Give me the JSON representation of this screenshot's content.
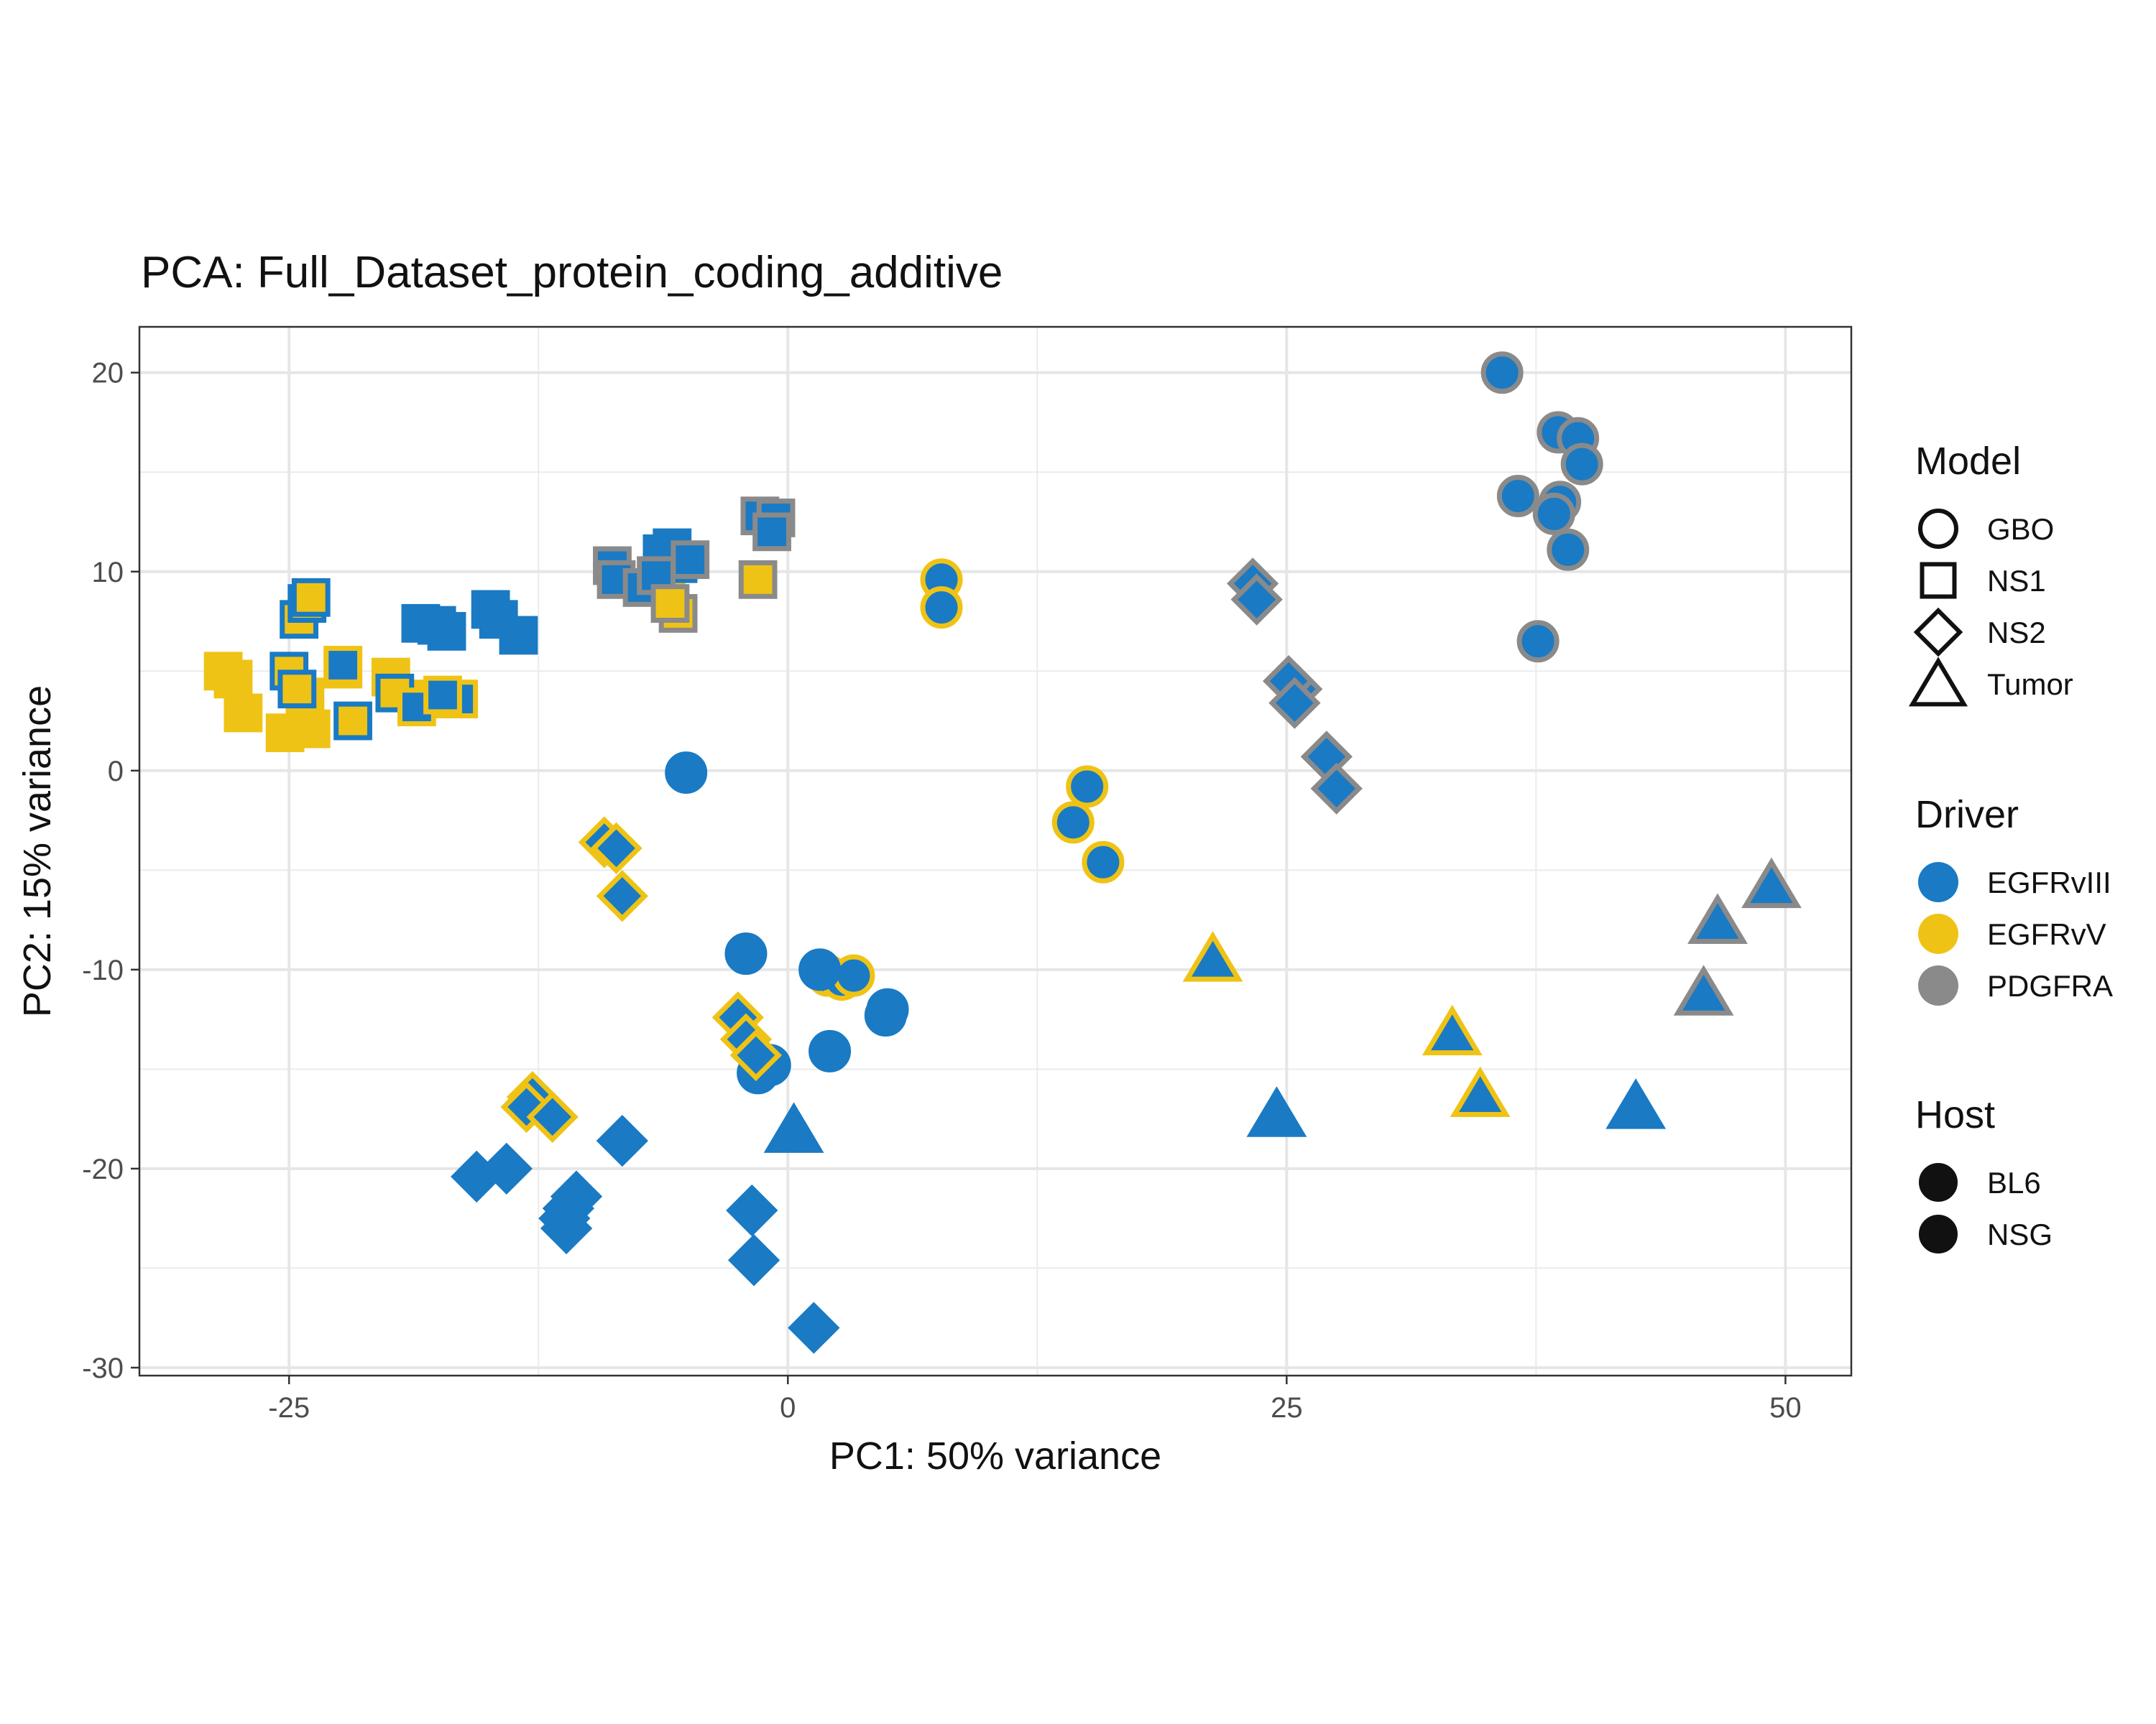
{
  "chart_data": {
    "type": "scatter",
    "title": "PCA: Full_Dataset_protein_coding_additive",
    "xlabel": "PC1: 50% variance",
    "ylabel": "PC2: 15% variance",
    "xlim": [
      -32.5,
      53.3
    ],
    "ylim": [
      -30.4,
      22.3
    ],
    "x_ticks": [
      -25,
      0,
      25,
      50
    ],
    "x_tick_labels": [
      "-25",
      "0",
      "25",
      "50"
    ],
    "y_ticks": [
      -30,
      -20,
      -10,
      0,
      10,
      20
    ],
    "y_tick_labels": [
      "-30",
      "-20",
      "-10",
      "0",
      "10",
      "20"
    ],
    "grid": true,
    "legend_placement": "right",
    "colors": {
      "EGFRvIII": "#1a7ac4",
      "EGFRvV": "#efc315",
      "PDGFRA": "#8a8a8a",
      "legend_black": "#111111"
    },
    "legend": {
      "model_title": "Model",
      "model_items": [
        {
          "label": "GBO",
          "shape": "circle"
        },
        {
          "label": "NS1",
          "shape": "square"
        },
        {
          "label": "NS2",
          "shape": "diamond"
        },
        {
          "label": "Tumor",
          "shape": "triangle"
        }
      ],
      "driver_title": "Driver",
      "driver_items": [
        {
          "label": "EGFRvIII",
          "color": "#1a7ac4"
        },
        {
          "label": "EGFRvV",
          "color": "#efc315"
        },
        {
          "label": "PDGFRA",
          "color": "#8a8a8a"
        }
      ],
      "host_title": "Host",
      "host_items": [
        {
          "label": "BL6"
        },
        {
          "label": "NSG"
        }
      ]
    },
    "points": [
      {
        "x": 35.8,
        "y": 20.0,
        "shape": "circle",
        "fill": "EGFRvIII",
        "stroke": "PDGFRA"
      },
      {
        "x": 38.6,
        "y": 17.0,
        "shape": "circle",
        "fill": "EGFRvIII",
        "stroke": "PDGFRA"
      },
      {
        "x": 39.6,
        "y": 16.7,
        "shape": "circle",
        "fill": "EGFRvIII",
        "stroke": "PDGFRA"
      },
      {
        "x": 39.8,
        "y": 15.4,
        "shape": "circle",
        "fill": "EGFRvIII",
        "stroke": "PDGFRA"
      },
      {
        "x": 36.6,
        "y": 13.8,
        "shape": "circle",
        "fill": "EGFRvIII",
        "stroke": "PDGFRA"
      },
      {
        "x": 38.7,
        "y": 13.5,
        "shape": "circle",
        "fill": "EGFRvIII",
        "stroke": "PDGFRA"
      },
      {
        "x": 38.4,
        "y": 12.9,
        "shape": "circle",
        "fill": "EGFRvIII",
        "stroke": "PDGFRA"
      },
      {
        "x": 39.1,
        "y": 11.1,
        "shape": "circle",
        "fill": "EGFRvIII",
        "stroke": "PDGFRA"
      },
      {
        "x": 37.6,
        "y": 6.5,
        "shape": "circle",
        "fill": "EGFRvIII",
        "stroke": "PDGFRA"
      },
      {
        "x": 23.3,
        "y": 9.4,
        "shape": "diamond",
        "fill": "EGFRvIII",
        "stroke": "PDGFRA"
      },
      {
        "x": 23.5,
        "y": 8.6,
        "shape": "diamond",
        "fill": "EGFRvIII",
        "stroke": "PDGFRA"
      },
      {
        "x": 25.5,
        "y": 4.1,
        "shape": "diamond",
        "fill": "EGFRvIII",
        "stroke": "PDGFRA"
      },
      {
        "x": 25.1,
        "y": 4.5,
        "shape": "diamond",
        "fill": "EGFRvIII",
        "stroke": "PDGFRA"
      },
      {
        "x": 25.4,
        "y": 3.4,
        "shape": "diamond",
        "fill": "EGFRvIII",
        "stroke": "PDGFRA"
      },
      {
        "x": 27.0,
        "y": 0.7,
        "shape": "diamond",
        "fill": "EGFRvIII",
        "stroke": "PDGFRA"
      },
      {
        "x": 27.5,
        "y": -0.9,
        "shape": "diamond",
        "fill": "EGFRvIII",
        "stroke": "PDGFRA"
      },
      {
        "x": 7.7,
        "y": 9.6,
        "shape": "circle",
        "fill": "EGFRvIII",
        "stroke": "EGFRvV"
      },
      {
        "x": 7.7,
        "y": 8.2,
        "shape": "circle",
        "fill": "EGFRvIII",
        "stroke": "EGFRvV"
      },
      {
        "x": 15.0,
        "y": -0.8,
        "shape": "circle",
        "fill": "EGFRvIII",
        "stroke": "EGFRvV"
      },
      {
        "x": 14.3,
        "y": -2.6,
        "shape": "circle",
        "fill": "EGFRvIII",
        "stroke": "EGFRvV"
      },
      {
        "x": 15.8,
        "y": -4.6,
        "shape": "circle",
        "fill": "EGFRvIII",
        "stroke": "EGFRvV"
      },
      {
        "x": 2.0,
        "y": -10.3,
        "shape": "circle",
        "fill": "EGFRvIII",
        "stroke": "EGFRvV"
      },
      {
        "x": 2.7,
        "y": -10.5,
        "shape": "circle",
        "fill": "EGFRvIII",
        "stroke": "EGFRvV"
      },
      {
        "x": 3.3,
        "y": -10.3,
        "shape": "circle",
        "fill": "EGFRvIII",
        "stroke": "EGFRvV"
      },
      {
        "x": -5.1,
        "y": -0.1,
        "shape": "circle",
        "fill": "EGFRvIII",
        "stroke": "EGFRvIII"
      },
      {
        "x": -2.1,
        "y": -9.2,
        "shape": "circle",
        "fill": "EGFRvIII",
        "stroke": "EGFRvIII"
      },
      {
        "x": 1.6,
        "y": -10.0,
        "shape": "circle",
        "fill": "EGFRvIII",
        "stroke": "EGFRvIII"
      },
      {
        "x": 5.0,
        "y": -12.0,
        "shape": "circle",
        "fill": "EGFRvIII",
        "stroke": "EGFRvIII"
      },
      {
        "x": 4.9,
        "y": -12.3,
        "shape": "circle",
        "fill": "EGFRvIII",
        "stroke": "EGFRvIII"
      },
      {
        "x": 2.1,
        "y": -14.1,
        "shape": "circle",
        "fill": "EGFRvIII",
        "stroke": "EGFRvIII"
      },
      {
        "x": -0.9,
        "y": -14.8,
        "shape": "circle",
        "fill": "EGFRvIII",
        "stroke": "EGFRvIII"
      },
      {
        "x": -1.5,
        "y": -15.2,
        "shape": "circle",
        "fill": "EGFRvIII",
        "stroke": "EGFRvIII"
      },
      {
        "x": -9.2,
        "y": -3.6,
        "shape": "diamond",
        "fill": "EGFRvIII",
        "stroke": "EGFRvV"
      },
      {
        "x": -8.6,
        "y": -3.9,
        "shape": "diamond",
        "fill": "EGFRvIII",
        "stroke": "EGFRvV"
      },
      {
        "x": -8.3,
        "y": -6.3,
        "shape": "diamond",
        "fill": "EGFRvIII",
        "stroke": "EGFRvV"
      },
      {
        "x": -2.5,
        "y": -12.4,
        "shape": "diamond",
        "fill": "EGFRvIII",
        "stroke": "EGFRvV"
      },
      {
        "x": -2.1,
        "y": -13.5,
        "shape": "diamond",
        "fill": "EGFRvIII",
        "stroke": "EGFRvV"
      },
      {
        "x": -1.6,
        "y": -14.3,
        "shape": "diamond",
        "fill": "EGFRvIII",
        "stroke": "EGFRvV"
      },
      {
        "x": -12.8,
        "y": -16.4,
        "shape": "diamond",
        "fill": "EGFRvIII",
        "stroke": "EGFRvV"
      },
      {
        "x": -13.1,
        "y": -16.9,
        "shape": "diamond",
        "fill": "EGFRvIII",
        "stroke": "EGFRvV"
      },
      {
        "x": -11.8,
        "y": -17.4,
        "shape": "diamond",
        "fill": "EGFRvIII",
        "stroke": "EGFRvV"
      },
      {
        "x": -8.3,
        "y": -18.6,
        "shape": "diamond",
        "fill": "EGFRvIII",
        "stroke": "EGFRvIII"
      },
      {
        "x": -15.6,
        "y": -20.4,
        "shape": "diamond",
        "fill": "EGFRvIII",
        "stroke": "EGFRvIII"
      },
      {
        "x": -14.1,
        "y": -20.0,
        "shape": "diamond",
        "fill": "EGFRvIII",
        "stroke": "EGFRvIII"
      },
      {
        "x": -10.6,
        "y": -21.4,
        "shape": "diamond",
        "fill": "EGFRvIII",
        "stroke": "EGFRvIII"
      },
      {
        "x": -11.0,
        "y": -22.0,
        "shape": "diamond",
        "fill": "EGFRvIII",
        "stroke": "EGFRvIII"
      },
      {
        "x": -11.2,
        "y": -22.5,
        "shape": "diamond",
        "fill": "EGFRvIII",
        "stroke": "EGFRvIII"
      },
      {
        "x": -11.1,
        "y": -23.0,
        "shape": "diamond",
        "fill": "EGFRvIII",
        "stroke": "EGFRvIII"
      },
      {
        "x": -1.8,
        "y": -22.1,
        "shape": "diamond",
        "fill": "EGFRvIII",
        "stroke": "EGFRvIII"
      },
      {
        "x": -1.7,
        "y": -24.6,
        "shape": "diamond",
        "fill": "EGFRvIII",
        "stroke": "EGFRvIII"
      },
      {
        "x": 1.3,
        "y": -28.0,
        "shape": "diamond",
        "fill": "EGFRvIII",
        "stroke": "EGFRvIII"
      },
      {
        "x": 0.3,
        "y": -18.2,
        "shape": "triangle",
        "fill": "EGFRvIII",
        "stroke": "EGFRvIII"
      },
      {
        "x": 24.5,
        "y": -17.4,
        "shape": "triangle",
        "fill": "EGFRvIII",
        "stroke": "EGFRvIII"
      },
      {
        "x": 42.5,
        "y": -17.0,
        "shape": "triangle",
        "fill": "EGFRvIII",
        "stroke": "EGFRvIII"
      },
      {
        "x": 21.3,
        "y": -9.6,
        "shape": "triangle",
        "fill": "EGFRvIII",
        "stroke": "EGFRvV"
      },
      {
        "x": 33.3,
        "y": -13.3,
        "shape": "triangle",
        "fill": "EGFRvIII",
        "stroke": "EGFRvV"
      },
      {
        "x": 34.7,
        "y": -16.4,
        "shape": "triangle",
        "fill": "EGFRvIII",
        "stroke": "EGFRvV"
      },
      {
        "x": 49.3,
        "y": -5.9,
        "shape": "triangle",
        "fill": "EGFRvIII",
        "stroke": "PDGFRA"
      },
      {
        "x": 46.6,
        "y": -7.7,
        "shape": "triangle",
        "fill": "EGFRvIII",
        "stroke": "PDGFRA"
      },
      {
        "x": 45.9,
        "y": -11.3,
        "shape": "triangle",
        "fill": "EGFRvIII",
        "stroke": "PDGFRA"
      },
      {
        "x": -28.3,
        "y": 5.0,
        "shape": "square",
        "fill": "EGFRvV",
        "stroke": "EGFRvV"
      },
      {
        "x": -27.8,
        "y": 4.6,
        "shape": "square",
        "fill": "EGFRvV",
        "stroke": "EGFRvV"
      },
      {
        "x": -27.3,
        "y": 2.9,
        "shape": "square",
        "fill": "EGFRvV",
        "stroke": "EGFRvV"
      },
      {
        "x": -25.2,
        "y": 1.9,
        "shape": "square",
        "fill": "EGFRvV",
        "stroke": "EGFRvV"
      },
      {
        "x": -23.9,
        "y": 2.1,
        "shape": "square",
        "fill": "EGFRvV",
        "stroke": "EGFRvV"
      },
      {
        "x": -24.2,
        "y": 3.7,
        "shape": "square",
        "fill": "EGFRvV",
        "stroke": "EGFRvV"
      },
      {
        "x": -22.3,
        "y": 5.1,
        "shape": "square",
        "fill": "EGFRvV",
        "stroke": "EGFRvV"
      },
      {
        "x": -19.9,
        "y": 4.7,
        "shape": "square",
        "fill": "EGFRvV",
        "stroke": "EGFRvV"
      },
      {
        "x": -17.8,
        "y": 3.6,
        "shape": "square",
        "fill": "EGFRvV",
        "stroke": "EGFRvV"
      },
      {
        "x": -6.1,
        "y": 9.3,
        "shape": "square",
        "fill": "EGFRvV",
        "stroke": "EGFRvV"
      },
      {
        "x": -24.5,
        "y": 7.6,
        "shape": "square",
        "fill": "EGFRvV",
        "stroke": "EGFRvIII"
      },
      {
        "x": -24.1,
        "y": 8.4,
        "shape": "square",
        "fill": "EGFRvV",
        "stroke": "EGFRvIII"
      },
      {
        "x": -23.9,
        "y": 8.7,
        "shape": "square",
        "fill": "EGFRvV",
        "stroke": "EGFRvIII"
      },
      {
        "x": -25.0,
        "y": 5.0,
        "shape": "square",
        "fill": "EGFRvV",
        "stroke": "EGFRvIII"
      },
      {
        "x": -24.6,
        "y": 4.1,
        "shape": "square",
        "fill": "EGFRvV",
        "stroke": "EGFRvIII"
      },
      {
        "x": -21.8,
        "y": 2.5,
        "shape": "square",
        "fill": "EGFRvV",
        "stroke": "EGFRvIII"
      },
      {
        "x": -19.7,
        "y": 3.9,
        "shape": "square",
        "fill": "EGFRvV",
        "stroke": "EGFRvIII"
      },
      {
        "x": -22.3,
        "y": 5.3,
        "shape": "square",
        "fill": "EGFRvIII",
        "stroke": "EGFRvV"
      },
      {
        "x": -18.6,
        "y": 3.2,
        "shape": "square",
        "fill": "EGFRvIII",
        "stroke": "EGFRvV"
      },
      {
        "x": -16.5,
        "y": 3.6,
        "shape": "square",
        "fill": "EGFRvIII",
        "stroke": "EGFRvV"
      },
      {
        "x": -17.3,
        "y": 3.8,
        "shape": "square",
        "fill": "EGFRvIII",
        "stroke": "EGFRvV"
      },
      {
        "x": -18.4,
        "y": 7.4,
        "shape": "square",
        "fill": "EGFRvIII",
        "stroke": "EGFRvIII"
      },
      {
        "x": -17.6,
        "y": 7.3,
        "shape": "square",
        "fill": "EGFRvIII",
        "stroke": "EGFRvIII"
      },
      {
        "x": -17.1,
        "y": 7.0,
        "shape": "square",
        "fill": "EGFRvIII",
        "stroke": "EGFRvIII"
      },
      {
        "x": -14.9,
        "y": 8.1,
        "shape": "square",
        "fill": "EGFRvIII",
        "stroke": "EGFRvIII"
      },
      {
        "x": -14.5,
        "y": 7.6,
        "shape": "square",
        "fill": "EGFRvIII",
        "stroke": "EGFRvIII"
      },
      {
        "x": -13.5,
        "y": 6.8,
        "shape": "square",
        "fill": "EGFRvIII",
        "stroke": "EGFRvIII"
      },
      {
        "x": -5.5,
        "y": 10.4,
        "shape": "square",
        "fill": "EGFRvIII",
        "stroke": "EGFRvIII"
      },
      {
        "x": -5.8,
        "y": 11.2,
        "shape": "square",
        "fill": "EGFRvIII",
        "stroke": "EGFRvIII"
      },
      {
        "x": -6.3,
        "y": 10.9,
        "shape": "square",
        "fill": "EGFRvIII",
        "stroke": "EGFRvIII"
      },
      {
        "x": -8.8,
        "y": 10.3,
        "shape": "square",
        "fill": "EGFRvIII",
        "stroke": "PDGFRA"
      },
      {
        "x": -8.6,
        "y": 9.6,
        "shape": "square",
        "fill": "EGFRvIII",
        "stroke": "PDGFRA"
      },
      {
        "x": -7.3,
        "y": 9.2,
        "shape": "square",
        "fill": "EGFRvIII",
        "stroke": "PDGFRA"
      },
      {
        "x": -6.6,
        "y": 9.8,
        "shape": "square",
        "fill": "EGFRvIII",
        "stroke": "PDGFRA"
      },
      {
        "x": -4.9,
        "y": 10.6,
        "shape": "square",
        "fill": "EGFRvIII",
        "stroke": "PDGFRA"
      },
      {
        "x": -1.4,
        "y": 12.8,
        "shape": "square",
        "fill": "EGFRvIII",
        "stroke": "PDGFRA"
      },
      {
        "x": -0.6,
        "y": 12.7,
        "shape": "square",
        "fill": "EGFRvIII",
        "stroke": "PDGFRA"
      },
      {
        "x": -0.8,
        "y": 12.0,
        "shape": "square",
        "fill": "EGFRvIII",
        "stroke": "PDGFRA"
      },
      {
        "x": -5.5,
        "y": 7.9,
        "shape": "square",
        "fill": "EGFRvV",
        "stroke": "PDGFRA"
      },
      {
        "x": -1.5,
        "y": 9.6,
        "shape": "square",
        "fill": "EGFRvV",
        "stroke": "PDGFRA"
      },
      {
        "x": -5.9,
        "y": 8.4,
        "shape": "square",
        "fill": "EGFRvV",
        "stroke": "PDGFRA"
      }
    ]
  }
}
